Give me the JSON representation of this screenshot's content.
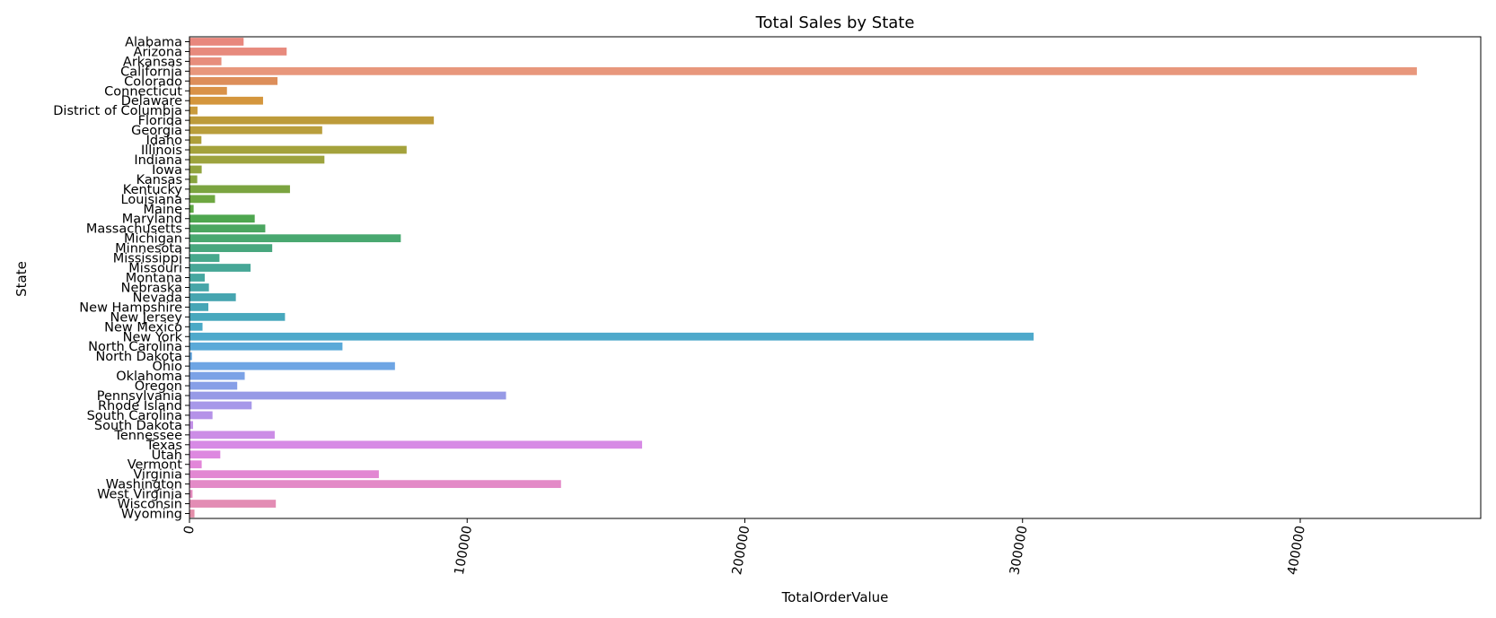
{
  "chart_data": {
    "type": "bar",
    "orientation": "horizontal",
    "title": "Total Sales by State",
    "xlabel": "TotalOrderValue",
    "ylabel": "State",
    "xlim": [
      0,
      465000
    ],
    "xticks": [
      0,
      100000,
      200000,
      300000,
      400000
    ],
    "xtick_labels": [
      "0",
      "100000",
      "200000",
      "300000",
      "400000"
    ],
    "xtick_rotation": -80,
    "grid": false,
    "legend": "none",
    "categories": [
      "Alabama",
      "Arizona",
      "Arkansas",
      "California",
      "Colorado",
      "Connecticut",
      "Delaware",
      "District of Columbia",
      "Florida",
      "Georgia",
      "Idaho",
      "Illinois",
      "Indiana",
      "Iowa",
      "Kansas",
      "Kentucky",
      "Louisiana",
      "Maine",
      "Maryland",
      "Massachusetts",
      "Michigan",
      "Minnesota",
      "Mississippi",
      "Missouri",
      "Montana",
      "Nebraska",
      "Nevada",
      "New Hampshire",
      "New Jersey",
      "New Mexico",
      "New York",
      "North Carolina",
      "North Dakota",
      "Ohio",
      "Oklahoma",
      "Oregon",
      "Pennsylvania",
      "Rhode Island",
      "South Carolina",
      "South Dakota",
      "Tennessee",
      "Texas",
      "Utah",
      "Vermont",
      "Virginia",
      "Washington",
      "West Virginia",
      "Wisconsin",
      "Wyoming"
    ],
    "values": [
      19500,
      35000,
      11500,
      442000,
      31700,
      13500,
      26500,
      2900,
      88000,
      47800,
      4300,
      78200,
      48600,
      4400,
      2800,
      36200,
      9200,
      1500,
      23500,
      27300,
      76100,
      29800,
      10800,
      22000,
      5500,
      7000,
      16700,
      6800,
      34400,
      4700,
      304000,
      55100,
      900,
      74000,
      19900,
      17200,
      114000,
      22400,
      8300,
      1300,
      30700,
      163000,
      11100,
      4400,
      68200,
      133800,
      1100,
      31100,
      1800
    ],
    "colors": [
      "#e8877d",
      "#e78a7d",
      "#e78d7c",
      "#e8977c",
      "#dd8e5a",
      "#d99248",
      "#d4963d",
      "#c99b3d",
      "#bd9b3a",
      "#b99e3c",
      "#ae9f3b",
      "#a4a23c",
      "#9da33e",
      "#92a43f",
      "#88a43f",
      "#7ba440",
      "#6ea741",
      "#5ea744",
      "#4ea64f",
      "#4ba660",
      "#49a870",
      "#48a77e",
      "#47a88c",
      "#47a797",
      "#46a7a0",
      "#46a5a8",
      "#46a5b0",
      "#47a6b6",
      "#48a8bd",
      "#4aa9c6",
      "#4ea9cb",
      "#5aa9d8",
      "#64a6de",
      "#6ea5e4",
      "#7ba2e6",
      "#879fe7",
      "#979ae6",
      "#a798e9",
      "#b592e8",
      "#c391e8",
      "#cc8de6",
      "#d78ae5",
      "#dd88e0",
      "#e286d9",
      "#e287d2",
      "#e38ac7",
      "#e38bbd",
      "#e38cb4",
      "#e38ea9"
    ]
  }
}
